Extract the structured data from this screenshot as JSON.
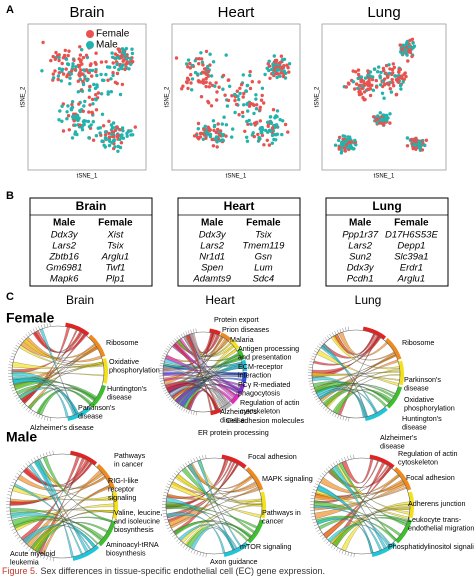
{
  "panel_labels": [
    "A",
    "B",
    "C"
  ],
  "tsne": {
    "tissues": [
      "Brain",
      "Heart",
      "Lung"
    ],
    "x_label": "tSNE_1",
    "y_label": "tSNE_2",
    "legend": [
      {
        "name": "Female",
        "color": "#e8524f"
      },
      {
        "name": "Male",
        "color": "#22b3ad"
      }
    ]
  },
  "tables": [
    {
      "title": "Brain",
      "headers": [
        "Male",
        "Female"
      ],
      "rows": [
        [
          "Ddx3y",
          "Xist"
        ],
        [
          "Lars2",
          "Tsix"
        ],
        [
          "Zbtb16",
          "Arglu1"
        ],
        [
          "Gm6981",
          "Twf1"
        ],
        [
          "Mapk6",
          "Plp1"
        ]
      ]
    },
    {
      "title": "Heart",
      "headers": [
        "Male",
        "Female"
      ],
      "rows": [
        [
          "Ddx3y",
          "Tsix"
        ],
        [
          "Lars2",
          "Tmem119"
        ],
        [
          "Nr1d1",
          "Gsn"
        ],
        [
          "Spen",
          "Lum"
        ],
        [
          "Adamts9",
          "Sdc4"
        ]
      ]
    },
    {
      "title": "Lung",
      "headers": [
        "Male",
        "Female"
      ],
      "rows": [
        [
          "Ppp1r37",
          "D17H6S53E"
        ],
        [
          "Lars2",
          "Depp1"
        ],
        [
          "Sun2",
          "Slc39a1"
        ],
        [
          "Ddx3y",
          "Erdr1"
        ],
        [
          "Pcdh1",
          "Arglu1"
        ]
      ]
    }
  ],
  "chord": {
    "columns": [
      "Brain",
      "Heart",
      "Lung"
    ],
    "groups": [
      {
        "name": "Female",
        "panels": [
          {
            "labels": [
              [
                "Ribosome"
              ],
              [
                "Oxidative",
                "phosphorylation"
              ],
              [
                "Huntington's",
                "disease"
              ],
              [
                "Parkinson's",
                "disease"
              ],
              [
                "Alzheimer's disease"
              ]
            ]
          },
          {
            "labels": [
              [
                "Protein export"
              ],
              [
                "Prion diseases"
              ],
              [
                "Malaria"
              ],
              [
                "Antigen processing",
                "and presentation"
              ],
              [
                "ECM-receptor",
                "interaction"
              ],
              [
                "FCγ R-mediated",
                "phagocytosis"
              ],
              [
                "Regulation of actin",
                "cytoskeleton"
              ],
              [
                "Cell adhesion molecules"
              ],
              [
                "Alzheimer's",
                "disease"
              ],
              [
                "ER protein processing"
              ]
            ]
          },
          {
            "labels": [
              [
                "Ribosome"
              ],
              [
                "Parkinson's",
                "disease"
              ],
              [
                "Oxidative",
                "phosphorylation"
              ],
              [
                "Huntington's",
                "disease"
              ],
              [
                "Alzheimer's",
                "disease"
              ]
            ]
          }
        ]
      },
      {
        "name": "Male",
        "panels": [
          {
            "labels": [
              [
                "Pathways",
                "in cancer"
              ],
              [
                "RIG-I-like",
                "receptor",
                "signaling"
              ],
              [
                "Valine, leucine,",
                "and isoleucine",
                "biosynthesis"
              ],
              [
                "Aminoacyl-tRNA",
                "biosynthesis"
              ],
              [
                "Acute myeloid",
                "leukemia"
              ]
            ]
          },
          {
            "labels": [
              [
                "Focal adhesion"
              ],
              [
                "MAPK signaling"
              ],
              [
                "Pathways in",
                "cancer"
              ],
              [
                "mTOR signaling"
              ],
              [
                "Axon guidance"
              ]
            ]
          },
          {
            "labels": [
              [
                "Regulation of actin",
                "cytoskeleton"
              ],
              [
                "Focal adhesion"
              ],
              [
                "Adherens junction"
              ],
              [
                "Leukocyte trans-",
                "endothelial migration"
              ],
              [
                "Phosphatidylinositol signaling"
              ]
            ]
          }
        ]
      }
    ]
  },
  "caption": {
    "label": "Figure 5.",
    "text": "Sex differences in tissue-specific endothelial cell (EC) gene expression."
  }
}
